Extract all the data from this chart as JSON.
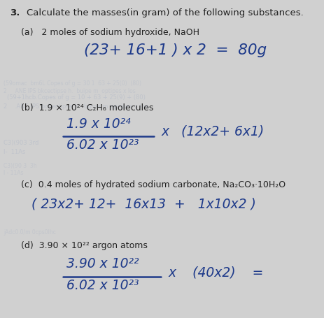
{
  "background_color": "#d0d0d0",
  "title_number": "3.",
  "title_text": "Calculate the masses(in gram) of the following substances.",
  "part_a_label": "(a)   2 moles of sodium hydroxide, NaOH",
  "part_a_formula": "(23+ 16+1 ) x 2  =  80g",
  "part_b_label": "(b)  1.9 × 10²⁴ C₂H₆ molecules",
  "part_b_numerator": "1.9 x 10²⁴",
  "part_b_denominator": "6.02 x 10²³",
  "part_b_rhs": "x   (12x2+ 6x1)",
  "part_c_label": "(c)  0.4 moles of hydrated sodium carbonate, Na₂CO₃·10H₂O",
  "part_c_formula": "( 23x2+ 12+  16x13  +   1x10x2 )",
  "part_d_label": "(d)  3.90 × 10²² argon atoms",
  "part_d_numerator": "3.90 x 10²²",
  "part_d_denominator": "6.02 x 10²³",
  "part_d_rhs": "x    (40x2)    =",
  "handwriting_color": "#1e3a8a",
  "print_color": "#222222",
  "faint_color": "#b0b8c8",
  "fs_title": 9.5,
  "fs_label": 9.0,
  "fs_hand": 13.5,
  "fs_hand_sm": 12.0
}
